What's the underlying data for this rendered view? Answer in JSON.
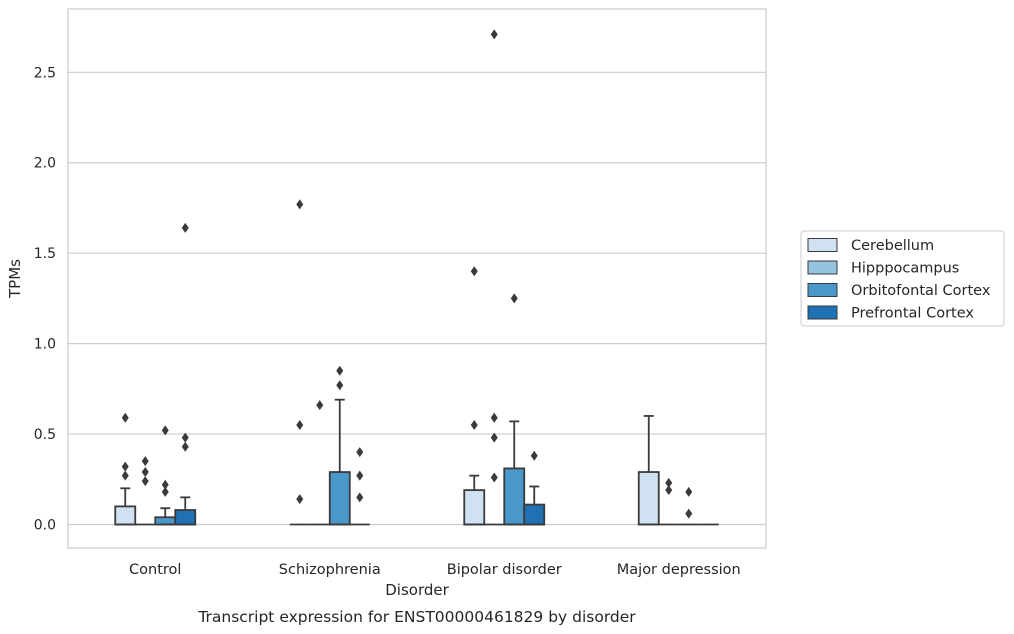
{
  "chart_data": {
    "type": "box",
    "caption": "Transcript expression for ENST00000461829 by disorder",
    "xlabel": "Disorder",
    "ylabel": "TPMs",
    "ylim": [
      -0.13,
      2.85
    ],
    "yticks": [
      "0.0",
      "0.5",
      "1.0",
      "1.5",
      "2.0",
      "2.5"
    ],
    "ytick_values": [
      0,
      0.5,
      1.0,
      1.5,
      2.0,
      2.5
    ],
    "grid": true,
    "legend_position": "right",
    "categories": [
      "Control",
      "Schizophrenia",
      "Bipolar disorder",
      "Major depression"
    ],
    "series": [
      {
        "name": "Cerebellum",
        "color": "#d0e1f2",
        "boxes": [
          {
            "q1": 0,
            "median": 0,
            "q3": 0.1,
            "whisker_low": 0,
            "whisker_high": 0.2,
            "outliers": [
              0.27,
              0.32,
              0.59
            ]
          },
          {
            "q1": 0,
            "median": 0,
            "q3": 0,
            "whisker_low": 0,
            "whisker_high": 0,
            "outliers": [
              0.14,
              0.55,
              1.77
            ]
          },
          {
            "q1": 0,
            "median": 0,
            "q3": 0.19,
            "whisker_low": 0,
            "whisker_high": 0.27,
            "outliers": [
              0.55,
              1.4
            ]
          },
          {
            "q1": 0,
            "median": 0,
            "q3": 0.29,
            "whisker_low": 0,
            "whisker_high": 0.6,
            "outliers": []
          }
        ]
      },
      {
        "name": "Hipppocampus",
        "color": "#94c4df",
        "boxes": [
          {
            "q1": 0,
            "median": 0,
            "q3": 0,
            "whisker_low": 0,
            "whisker_high": 0,
            "outliers": [
              0.24,
              0.29,
              0.35
            ]
          },
          {
            "q1": 0,
            "median": 0,
            "q3": 0,
            "whisker_low": 0,
            "whisker_high": 0,
            "outliers": [
              0.66
            ]
          },
          {
            "q1": 0,
            "median": 0,
            "q3": 0,
            "whisker_low": 0,
            "whisker_high": 0,
            "outliers": [
              0.26,
              0.48,
              0.59,
              2.71
            ]
          },
          {
            "q1": 0,
            "median": 0,
            "q3": 0,
            "whisker_low": 0,
            "whisker_high": 0,
            "outliers": [
              0.19,
              0.23
            ]
          }
        ]
      },
      {
        "name": "Orbitofontal Cortex",
        "color": "#4a98c9",
        "boxes": [
          {
            "q1": 0,
            "median": 0,
            "q3": 0.04,
            "whisker_low": 0,
            "whisker_high": 0.09,
            "outliers": [
              0.18,
              0.22,
              0.52
            ]
          },
          {
            "q1": 0,
            "median": 0,
            "q3": 0.29,
            "whisker_low": 0,
            "whisker_high": 0.69,
            "outliers": [
              0.77,
              0.85
            ]
          },
          {
            "q1": 0,
            "median": 0,
            "q3": 0.31,
            "whisker_low": 0,
            "whisker_high": 0.57,
            "outliers": [
              1.25
            ]
          },
          {
            "q1": 0,
            "median": 0,
            "q3": 0,
            "whisker_low": 0,
            "whisker_high": 0,
            "outliers": [
              0.06,
              0.18
            ]
          }
        ]
      },
      {
        "name": "Prefrontal Cortex",
        "color": "#2070b4",
        "boxes": [
          {
            "q1": 0,
            "median": 0,
            "q3": 0.08,
            "whisker_low": 0,
            "whisker_high": 0.15,
            "outliers": [
              0.43,
              0.48,
              1.64
            ]
          },
          {
            "q1": 0,
            "median": 0,
            "q3": 0,
            "whisker_low": 0,
            "whisker_high": 0,
            "outliers": [
              0.15,
              0.27,
              0.4
            ]
          },
          {
            "q1": 0,
            "median": 0,
            "q3": 0.11,
            "whisker_low": 0,
            "whisker_high": 0.21,
            "outliers": [
              0.38
            ]
          },
          {
            "q1": 0,
            "median": 0,
            "q3": 0,
            "whisker_low": 0,
            "whisker_high": 0,
            "outliers": []
          }
        ]
      }
    ]
  }
}
